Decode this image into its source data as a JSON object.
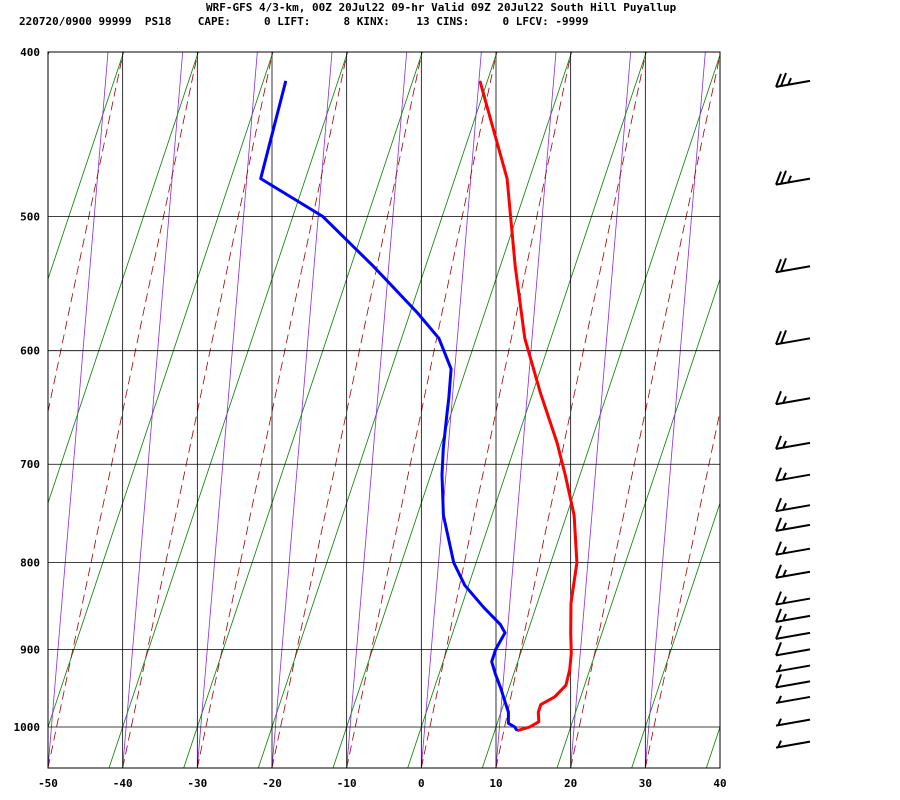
{
  "header": {
    "line1": "WRF-GFS 4/3-km, 00Z 20Jul22 09-hr Valid 09Z 20Jul22 South Hill Puyallup",
    "line2": "220720/0900 99999  PS18    CAPE:     0 LIFT:     8 KINX:    13 CINS:     0 LFCV: -9999"
  },
  "chart_data": {
    "type": "line",
    "title": "",
    "xlabel": "",
    "ylabel": "",
    "x_range": [
      -50,
      40
    ],
    "x_ticks": [
      -50,
      -40,
      -30,
      -20,
      -10,
      0,
      10,
      20,
      30,
      40
    ],
    "pressure_ticks": [
      400,
      500,
      600,
      700,
      800,
      900,
      1000
    ],
    "pressure_range": [
      400,
      1040
    ],
    "y_scale": "log-pressure",
    "skew": "skew-T",
    "grid": true,
    "series": [
      {
        "color": "#ff0000",
        "points": [
          [
            -21,
            416
          ],
          [
            -13,
            475
          ],
          [
            -8,
            535
          ],
          [
            -3.5,
            590
          ],
          [
            1,
            635
          ],
          [
            5.5,
            680
          ],
          [
            8,
            710
          ],
          [
            11,
            750
          ],
          [
            13.5,
            800
          ],
          [
            14.5,
            845
          ],
          [
            15.8,
            880
          ],
          [
            16.8,
            905
          ],
          [
            17.3,
            925
          ],
          [
            17.5,
            945
          ],
          [
            16.5,
            960
          ],
          [
            15,
            970
          ],
          [
            15,
            980
          ],
          [
            15.5,
            993
          ],
          [
            14.5,
            1000
          ],
          [
            13,
            1005
          ]
        ]
      },
      {
        "color": "#0000ff",
        "points": [
          [
            -47,
            416
          ],
          [
            -46,
            475
          ],
          [
            -36,
            500
          ],
          [
            -27,
            535
          ],
          [
            -19,
            570
          ],
          [
            -15,
            590
          ],
          [
            -12,
            615
          ],
          [
            -11,
            640
          ],
          [
            -10.5,
            655
          ],
          [
            -9.5,
            685
          ],
          [
            -8.5,
            710
          ],
          [
            -6.5,
            750
          ],
          [
            -3,
            800
          ],
          [
            -0.5,
            825
          ],
          [
            3,
            850
          ],
          [
            6,
            870
          ],
          [
            7,
            880
          ],
          [
            6.5,
            900
          ],
          [
            6.5,
            915
          ],
          [
            7.5,
            930
          ],
          [
            9,
            950
          ],
          [
            10,
            965
          ],
          [
            11,
            980
          ],
          [
            11.5,
            995
          ],
          [
            12.5,
            1000
          ],
          [
            13,
            1005
          ]
        ]
      }
    ],
    "wind_barbs": [
      {
        "pressure": 416,
        "speed_kt": 25
      },
      {
        "pressure": 475,
        "speed_kt": 25
      },
      {
        "pressure": 535,
        "speed_kt": 20
      },
      {
        "pressure": 590,
        "speed_kt": 20
      },
      {
        "pressure": 640,
        "speed_kt": 15
      },
      {
        "pressure": 680,
        "speed_kt": 15
      },
      {
        "pressure": 710,
        "speed_kt": 15
      },
      {
        "pressure": 740,
        "speed_kt": 15
      },
      {
        "pressure": 760,
        "speed_kt": 15
      },
      {
        "pressure": 785,
        "speed_kt": 15
      },
      {
        "pressure": 810,
        "speed_kt": 15
      },
      {
        "pressure": 840,
        "speed_kt": 15
      },
      {
        "pressure": 860,
        "speed_kt": 15
      },
      {
        "pressure": 880,
        "speed_kt": 10
      },
      {
        "pressure": 900,
        "speed_kt": 10
      },
      {
        "pressure": 920,
        "speed_kt": 5
      },
      {
        "pressure": 940,
        "speed_kt": 10
      },
      {
        "pressure": 960,
        "speed_kt": 5
      },
      {
        "pressure": 990,
        "speed_kt": 5
      },
      {
        "pressure": 1020,
        "speed_kt": 5
      }
    ]
  }
}
